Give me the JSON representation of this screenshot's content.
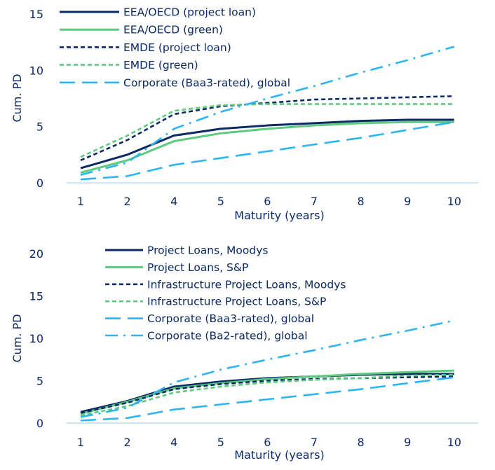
{
  "colors": {
    "navy": "#0b2a66",
    "green": "#5ccb7d",
    "blue": "#2bb5f4",
    "axis": "#b9dcf5"
  },
  "chart_data": [
    {
      "type": "line",
      "xlabel": "Maturity (years)",
      "ylabel": "Cum. PD",
      "categories": [
        "1",
        "2",
        "4",
        "5",
        "6",
        "7",
        "8",
        "9",
        "10"
      ],
      "ylim": [
        0,
        15
      ],
      "yticks": [
        0,
        5,
        10,
        15
      ],
      "grid": false,
      "legend_placement": "top-left",
      "series": [
        {
          "name": "EEA/OECD (project loan)",
          "color": "navy",
          "style": "solid",
          "values": [
            1.3,
            2.5,
            4.2,
            4.8,
            5.1,
            5.3,
            5.5,
            5.6,
            5.6
          ]
        },
        {
          "name": "EEA/OECD (green)",
          "color": "green",
          "style": "solid",
          "values": [
            0.9,
            2.0,
            3.7,
            4.4,
            4.8,
            5.1,
            5.3,
            5.4,
            5.4
          ]
        },
        {
          "name": "EMDE (project loan)",
          "color": "navy",
          "style": "dash",
          "values": [
            2.0,
            3.8,
            6.1,
            6.8,
            7.1,
            7.4,
            7.5,
            7.6,
            7.7
          ]
        },
        {
          "name": "EMDE (green)",
          "color": "green",
          "style": "dash",
          "values": [
            2.3,
            4.2,
            6.4,
            6.9,
            7.0,
            7.0,
            7.0,
            7.0,
            7.0
          ]
        },
        {
          "name": "Corporate (Baa3-rated), global",
          "color": "blue",
          "style": "longdash",
          "values": [
            0.3,
            0.6,
            1.6,
            2.2,
            2.8,
            3.4,
            4.0,
            4.7,
            5.4
          ]
        },
        {
          "color": "blue",
          "style": "dashdot",
          "values": [
            0.7,
            1.8,
            4.8,
            6.3,
            7.5,
            8.6,
            9.8,
            10.9,
            12.1
          ]
        }
      ]
    },
    {
      "type": "line",
      "xlabel": "Maturity (years)",
      "ylabel": "Cum. PD",
      "categories": [
        "1",
        "2",
        "4",
        "5",
        "6",
        "7",
        "8",
        "9",
        "10"
      ],
      "ylim": [
        0,
        20
      ],
      "yticks": [
        0,
        5,
        10,
        15,
        20
      ],
      "grid": false,
      "legend_placement": "top-left",
      "series": [
        {
          "name": "Project Loans, Moodys",
          "color": "navy",
          "style": "solid",
          "values": [
            1.3,
            2.6,
            4.3,
            4.9,
            5.3,
            5.5,
            5.7,
            5.8,
            5.8
          ]
        },
        {
          "name": "Project Loans, S&P",
          "color": "green",
          "style": "solid",
          "values": [
            1.1,
            2.5,
            4.1,
            4.7,
            5.2,
            5.5,
            5.8,
            6.0,
            6.2
          ]
        },
        {
          "name": "Infrastructure Project Loans, Moodys",
          "color": "navy",
          "style": "dash",
          "values": [
            1.2,
            2.4,
            4.0,
            4.6,
            5.0,
            5.2,
            5.3,
            5.4,
            5.5
          ]
        },
        {
          "name": "Infrastructure Project Loans, S&P",
          "color": "green",
          "style": "dash",
          "values": [
            0.9,
            2.0,
            3.6,
            4.3,
            4.8,
            5.1,
            5.3,
            5.6,
            5.7
          ]
        },
        {
          "name": "Corporate (Baa3-rated), global",
          "color": "blue",
          "style": "longdash",
          "values": [
            0.3,
            0.6,
            1.6,
            2.2,
            2.8,
            3.4,
            4.0,
            4.7,
            5.4
          ]
        },
        {
          "name": "Corporate (Ba2-rated), global",
          "color": "blue",
          "style": "dashdot",
          "values": [
            0.7,
            1.8,
            4.8,
            6.3,
            7.5,
            8.6,
            9.8,
            10.9,
            12.1
          ]
        }
      ]
    }
  ]
}
